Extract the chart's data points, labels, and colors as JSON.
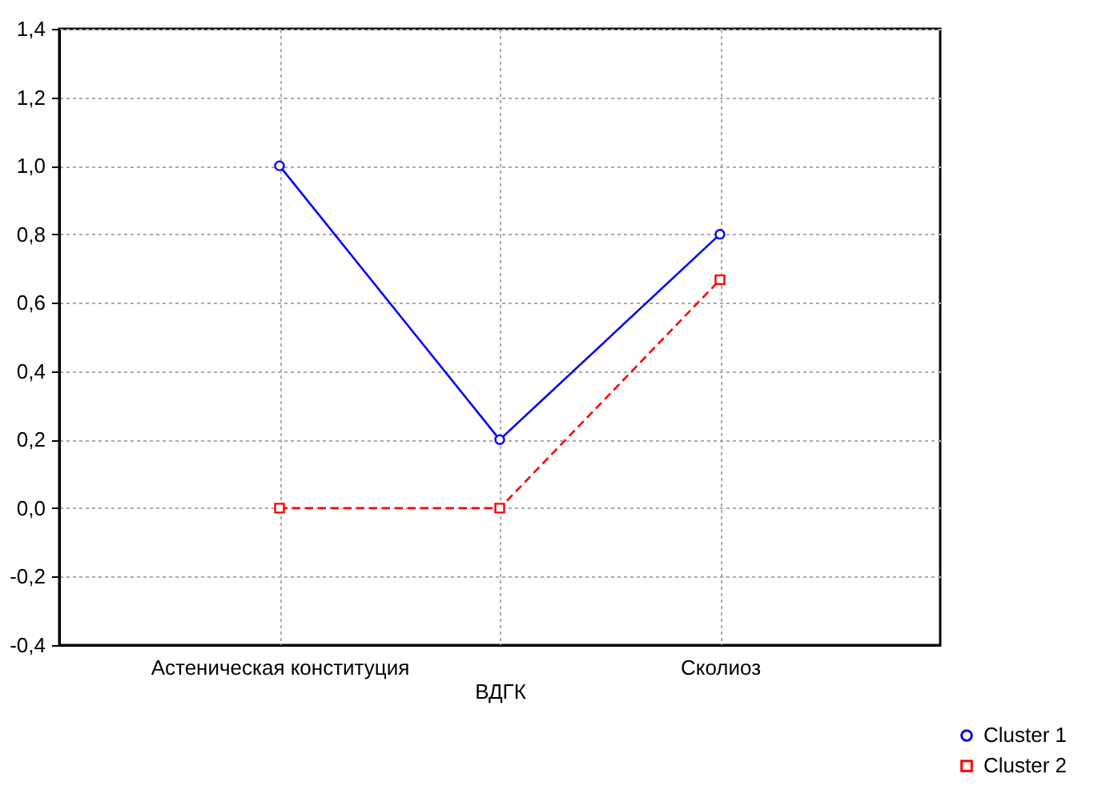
{
  "chart_data": {
    "type": "line",
    "xlabel": null,
    "categories": [
      "Астеническая конституция",
      "ВДГК",
      "Сколиоз"
    ],
    "series": [
      {
        "name": "Cluster 1",
        "color": "#0000ff",
        "values": [
          1.0,
          0.2,
          0.8
        ],
        "marker": "circle",
        "line_style": "solid"
      },
      {
        "name": "Cluster 2",
        "color": "#ff0000",
        "values": [
          0.0,
          0.0,
          0.667
        ],
        "marker": "square",
        "line_style": "dashed"
      }
    ],
    "ylim": [
      -0.4,
      1.4
    ],
    "yticks": [
      {
        "value": -0.4,
        "label": "-0,4"
      },
      {
        "value": -0.2,
        "label": "-0,2"
      },
      {
        "value": 0,
        "label": "0,0"
      },
      {
        "value": 0.2,
        "label": "0,2"
      },
      {
        "value": 0.4,
        "label": "0,4"
      },
      {
        "value": 0.6,
        "label": "0,6"
      },
      {
        "value": 0.8,
        "label": "0,8"
      },
      {
        "value": 1.0,
        "label": "1,0"
      },
      {
        "value": 1.2,
        "label": "1,2"
      },
      {
        "value": 1.4,
        "label": "1,4"
      }
    ],
    "grid": true,
    "legend": "bottom right"
  }
}
